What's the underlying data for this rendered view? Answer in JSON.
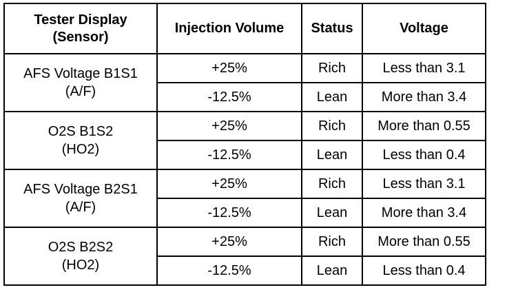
{
  "table": {
    "headers": {
      "tester_display": [
        "Tester Display",
        "(Sensor)"
      ],
      "injection_volume": "Injection Volume",
      "status": "Status",
      "voltage": "Voltage"
    },
    "groups": [
      {
        "sensor_name": "AFS Voltage B1S1",
        "sensor_type": "(A/F)",
        "rows": [
          {
            "injection": "+25%",
            "status": "Rich",
            "voltage": "Less than 3.1"
          },
          {
            "injection": "-12.5%",
            "status": "Lean",
            "voltage": "More than 3.4"
          }
        ]
      },
      {
        "sensor_name": "O2S B1S2",
        "sensor_type": "(HO2)",
        "rows": [
          {
            "injection": "+25%",
            "status": "Rich",
            "voltage": "More than 0.55"
          },
          {
            "injection": "-12.5%",
            "status": "Lean",
            "voltage": "Less than 0.4"
          }
        ]
      },
      {
        "sensor_name": "AFS Voltage B2S1",
        "sensor_type": "(A/F)",
        "rows": [
          {
            "injection": "+25%",
            "status": "Rich",
            "voltage": "Less than 3.1"
          },
          {
            "injection": "-12.5%",
            "status": "Lean",
            "voltage": "More than 3.4"
          }
        ]
      },
      {
        "sensor_name": "O2S B2S2",
        "sensor_type": "(HO2)",
        "rows": [
          {
            "injection": "+25%",
            "status": "Rich",
            "voltage": "More than 0.55"
          },
          {
            "injection": "-12.5%",
            "status": "Lean",
            "voltage": "Less than 0.4"
          }
        ]
      }
    ]
  }
}
